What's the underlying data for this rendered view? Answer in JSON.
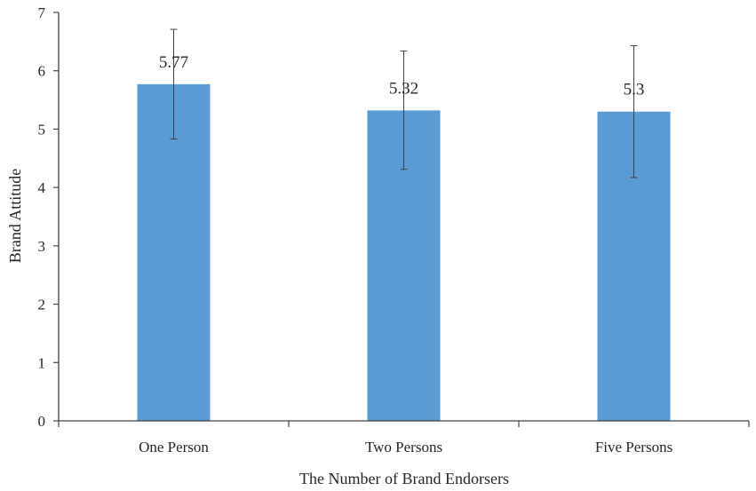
{
  "chart_data": {
    "type": "bar",
    "title": "",
    "xlabel": "The Number of Brand Endorsers",
    "ylabel": "Brand Attitude",
    "categories": [
      "One Person",
      "Two Persons",
      "Five Persons"
    ],
    "values": [
      5.77,
      5.32,
      5.3
    ],
    "data_labels": [
      "5.77",
      "5.32",
      "5.3"
    ],
    "error_bars": [
      {
        "low": 4.83,
        "high": 6.71
      },
      {
        "low": 4.31,
        "high": 6.34
      },
      {
        "low": 4.17,
        "high": 6.43
      }
    ],
    "ylim": [
      0,
      7
    ],
    "yticks": [
      0,
      1,
      2,
      3,
      4,
      5,
      6,
      7
    ],
    "grid": false,
    "legend": "none",
    "colors": {
      "bar": "#5b9bd5",
      "axis": "#404040",
      "error_bar": "#404040"
    }
  }
}
